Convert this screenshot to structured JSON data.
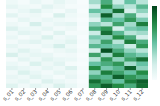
{
  "chart_data": {
    "type": "heatmap",
    "categories": [
      "s_01",
      "s_02",
      "s_03",
      "s_04",
      "s_05",
      "s_06",
      "s_07",
      "s_08",
      "s_09",
      "s_10",
      "s_11",
      "s_12"
    ],
    "values": [
      [
        0.05,
        0.02,
        0.08,
        0.03,
        0.1,
        0.04,
        0.0,
        0.35,
        0.6,
        0.25,
        0.5,
        0.3
      ],
      [
        0.1,
        0.05,
        0.03,
        0.12,
        0.06,
        0.02,
        0.01,
        0.2,
        0.75,
        0.4,
        0.3,
        0.55
      ],
      [
        0.03,
        0.08,
        0.15,
        0.05,
        0.02,
        0.09,
        0.0,
        0.5,
        0.45,
        0.85,
        0.2,
        0.4
      ],
      [
        0.12,
        0.04,
        0.06,
        0.02,
        0.18,
        0.05,
        0.02,
        0.3,
        0.9,
        0.35,
        0.6,
        0.25
      ],
      [
        0.02,
        0.1,
        0.04,
        0.08,
        0.05,
        0.03,
        0.0,
        0.15,
        0.55,
        0.5,
        0.7,
        0.45
      ],
      [
        0.06,
        0.03,
        0.2,
        0.04,
        0.09,
        0.11,
        0.01,
        0.4,
        0.3,
        0.65,
        0.35,
        0.8
      ],
      [
        0.15,
        0.07,
        0.05,
        0.1,
        0.03,
        0.06,
        0.0,
        0.6,
        0.7,
        0.2,
        0.45,
        0.5
      ],
      [
        0.04,
        0.12,
        0.09,
        0.03,
        0.14,
        0.02,
        0.02,
        0.25,
        0.85,
        0.55,
        0.3,
        0.35
      ],
      [
        0.08,
        0.02,
        0.06,
        0.16,
        0.04,
        0.08,
        0.0,
        0.45,
        0.4,
        0.75,
        0.6,
        0.2
      ],
      [
        0.03,
        0.09,
        0.12,
        0.05,
        0.07,
        0.13,
        0.01,
        0.35,
        0.65,
        0.3,
        0.8,
        0.6
      ],
      [
        0.1,
        0.04,
        0.03,
        0.08,
        0.2,
        0.05,
        0.0,
        0.55,
        0.5,
        0.45,
        0.25,
        0.7
      ],
      [
        0.05,
        0.14,
        0.07,
        0.02,
        0.06,
        0.1,
        0.02,
        0.2,
        0.95,
        0.6,
        0.4,
        0.3
      ],
      [
        0.18,
        0.06,
        0.1,
        0.09,
        0.03,
        0.04,
        0.0,
        0.65,
        0.35,
        0.8,
        0.55,
        0.45
      ],
      [
        0.02,
        0.11,
        0.05,
        0.13,
        0.08,
        0.07,
        0.01,
        0.3,
        0.7,
        0.4,
        0.65,
        0.85
      ],
      [
        0.07,
        0.03,
        0.16,
        0.06,
        0.12,
        0.02,
        0.0,
        0.5,
        0.6,
        0.7,
        0.35,
        0.5
      ],
      [
        0.12,
        0.08,
        0.04,
        0.1,
        0.05,
        0.15,
        0.02,
        0.75,
        0.45,
        0.55,
        0.9,
        0.4
      ],
      [
        0.04,
        0.16,
        0.08,
        0.03,
        0.1,
        0.06,
        0.0,
        0.4,
        0.8,
        0.65,
        0.5,
        0.75
      ],
      [
        0.09,
        0.05,
        0.13,
        0.07,
        0.02,
        0.09,
        0.01,
        0.6,
        0.55,
        0.9,
        0.7,
        0.6
      ],
      [
        0.06,
        0.1,
        0.03,
        0.15,
        0.08,
        0.04,
        0.0,
        0.85,
        0.65,
        0.5,
        0.8,
        0.9
      ],
      [
        0.14,
        0.04,
        0.11,
        0.05,
        0.17,
        0.08,
        0.02,
        0.7,
        0.9,
        0.75,
        0.6,
        0.85
      ]
    ],
    "colorbar_range": [
      0,
      1
    ],
    "tick_labels": "x"
  }
}
